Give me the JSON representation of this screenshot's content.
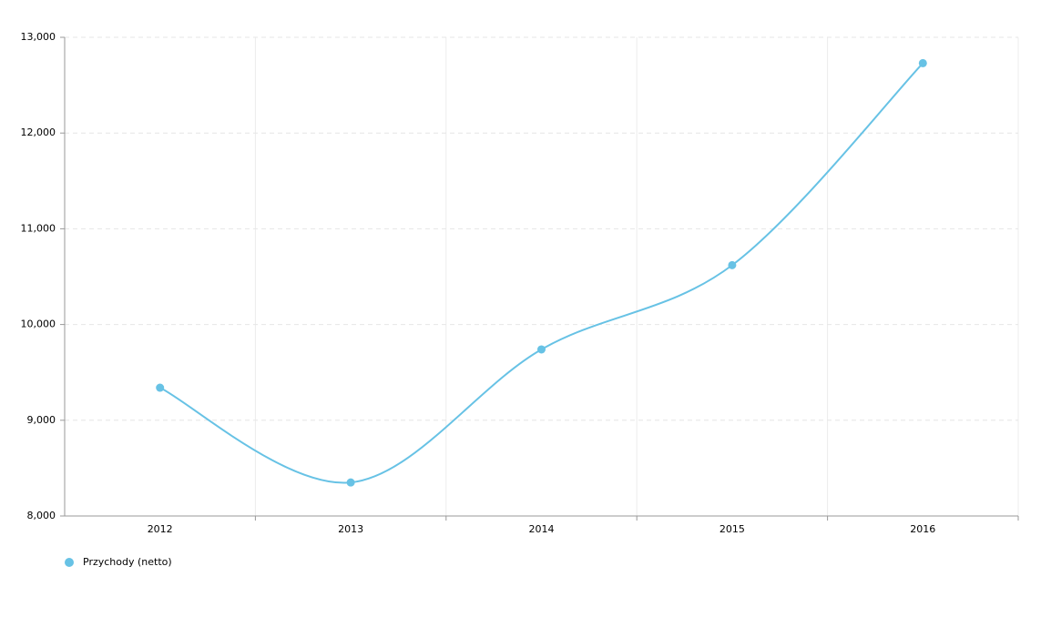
{
  "chart_data": {
    "type": "line",
    "categories": [
      "2012",
      "2013",
      "2014",
      "2015",
      "2016"
    ],
    "series": [
      {
        "name": "Przychody (netto)",
        "color": "#67c2e5",
        "values": [
          9340,
          8350,
          9740,
          10620,
          12730
        ]
      }
    ],
    "ylim": [
      8000,
      13000
    ],
    "yticks": [
      {
        "value": 8000,
        "label": "8,000"
      },
      {
        "value": 9000,
        "label": "9,000"
      },
      {
        "value": 10000,
        "label": "10,000"
      },
      {
        "value": 11000,
        "label": "11,000"
      },
      {
        "value": 12000,
        "label": "12,000"
      },
      {
        "value": 13000,
        "label": "13,000"
      }
    ],
    "grid": true,
    "smooth": true,
    "legend": "bottom-left"
  }
}
